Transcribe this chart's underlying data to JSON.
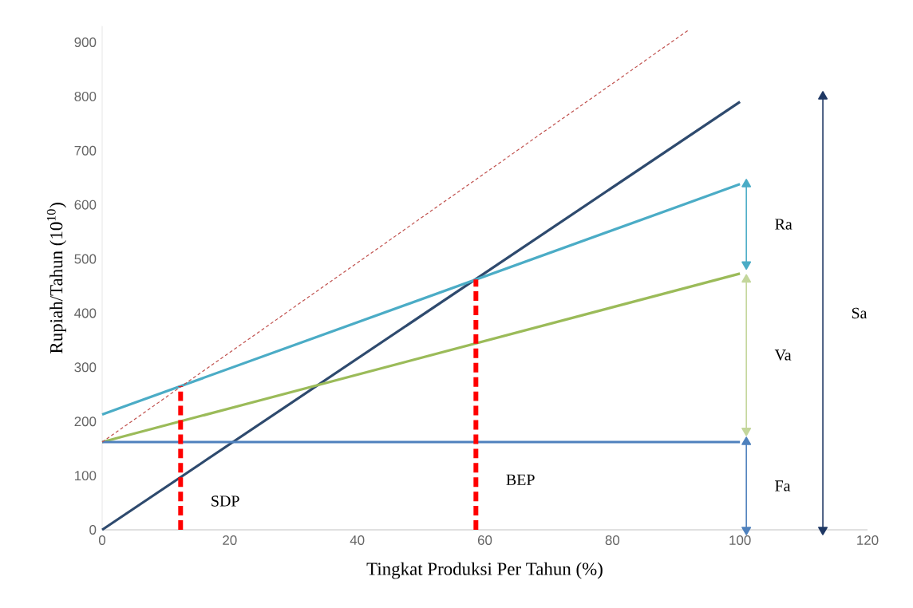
{
  "chart_data": {
    "type": "line",
    "xlabel": "Tingkat Produksi Per Tahun (%)",
    "ylabel": "Rupiah/Tahun (10$^{10}$)",
    "xlim": [
      0,
      120
    ],
    "ylim": [
      0,
      930
    ],
    "xticks": [
      0,
      20,
      40,
      60,
      80,
      100,
      120
    ],
    "yticks": [
      0,
      100,
      200,
      300,
      400,
      500,
      600,
      700,
      800,
      900
    ],
    "series": [
      {
        "color": "#2e4a6e",
        "x": [
          0,
          100
        ],
        "values": [
          0,
          790
        ]
      },
      {
        "color": "#4bacc6",
        "x": [
          0,
          100
        ],
        "values": [
          213,
          638
        ]
      },
      {
        "color": "#9bbb59",
        "x": [
          0,
          100
        ],
        "values": [
          162,
          473
        ]
      },
      {
        "color": "#4f81bd",
        "x": [
          0,
          100
        ],
        "values": [
          162,
          162
        ]
      },
      {
        "color": "#c0504d",
        "x": [
          0,
          92
        ],
        "values": [
          162,
          923
        ],
        "line_style": "dashed"
      },
      {
        "name": "SDP",
        "color": "#ff0000",
        "x": [
          12.3,
          12.3
        ],
        "values": [
          0,
          265
        ],
        "line_style": "dashed"
      },
      {
        "name": "BEP",
        "color": "#ff0000",
        "x": [
          58.6,
          58.6
        ],
        "values": [
          0,
          462
        ],
        "line_style": "dashed"
      },
      {
        "name": "Ra",
        "color": "#4bacc6",
        "x": [
          101,
          101
        ],
        "values": [
          490,
          638
        ],
        "marker": "triangle"
      },
      {
        "name": "Va",
        "color": "#c3d69b",
        "x": [
          101,
          101
        ],
        "values": [
          183,
          462
        ],
        "marker": "triangle"
      },
      {
        "name": "Fa",
        "color": "#4f81bd",
        "x": [
          101,
          101
        ],
        "values": [
          0,
          162
        ],
        "marker": "triangle"
      },
      {
        "name": "Sa",
        "color": "#1f3864",
        "x": [
          113,
          113
        ],
        "values": [
          0,
          800
        ],
        "marker": "triangle"
      }
    ]
  }
}
